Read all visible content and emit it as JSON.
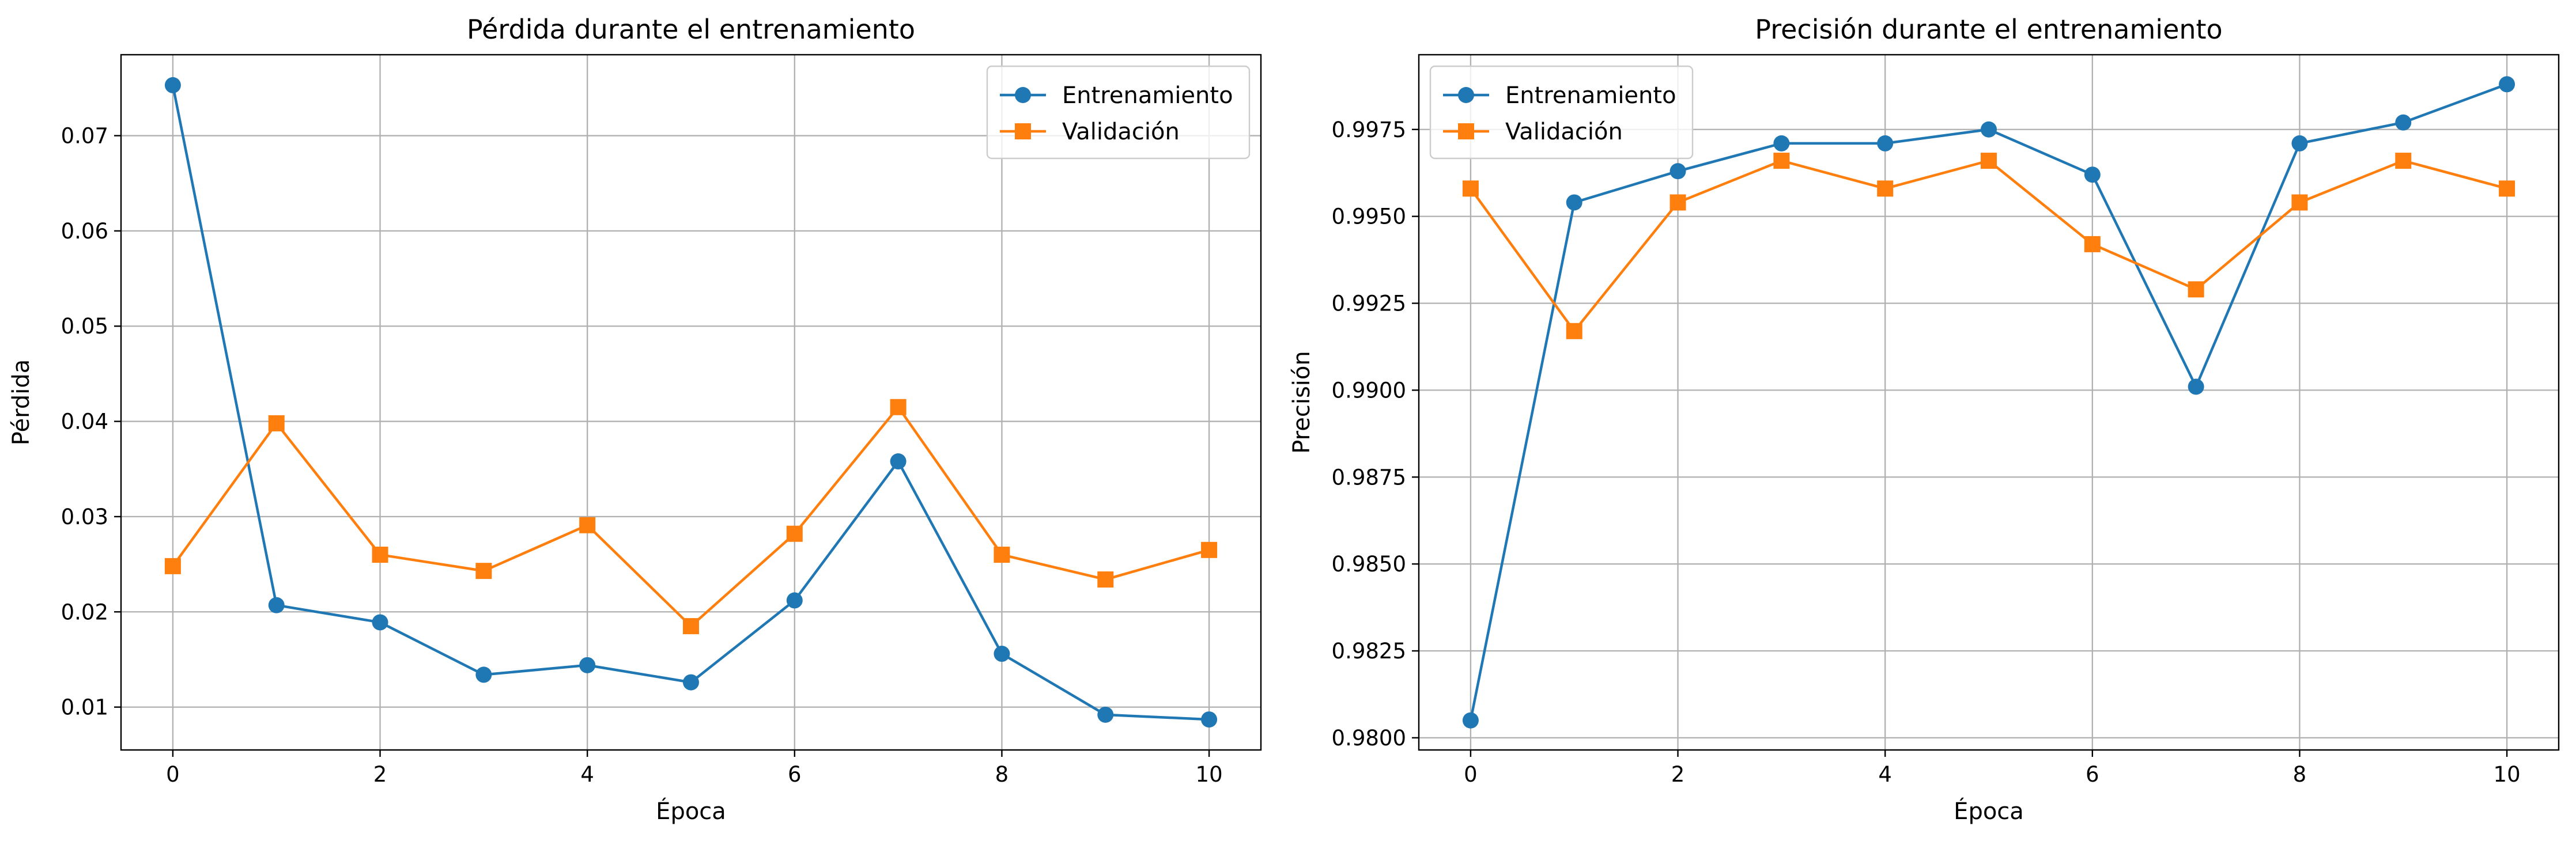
{
  "chart_data": [
    {
      "type": "line",
      "title": "Pérdida durante el entrenamiento",
      "xlabel": "Época",
      "ylabel": "Pérdida",
      "xlim": [
        -0.5,
        10.5
      ],
      "ylim": [
        0.0055,
        0.0785
      ],
      "xticks": [
        0,
        2,
        4,
        6,
        8,
        10
      ],
      "xtick_labels": [
        "0",
        "2",
        "4",
        "6",
        "8",
        "10"
      ],
      "yticks": [
        0.01,
        0.02,
        0.03,
        0.04,
        0.05,
        0.06,
        0.07
      ],
      "ytick_labels": [
        "0.01",
        "0.02",
        "0.03",
        "0.04",
        "0.05",
        "0.06",
        "0.07"
      ],
      "grid": true,
      "legend_position": "upper right",
      "x": [
        0,
        1,
        2,
        3,
        4,
        5,
        6,
        7,
        8,
        9,
        10
      ],
      "series": [
        {
          "name": "Entrenamiento",
          "color": "#1f77b4",
          "marker": "circle",
          "values": [
            0.0753,
            0.0207,
            0.0189,
            0.0134,
            0.0144,
            0.0126,
            0.0212,
            0.0358,
            0.0156,
            0.0092,
            0.0087
          ]
        },
        {
          "name": "Validación",
          "color": "#ff7f0e",
          "marker": "square",
          "values": [
            0.0248,
            0.0398,
            0.026,
            0.0243,
            0.0291,
            0.0185,
            0.0282,
            0.0415,
            0.026,
            0.0234,
            0.0265
          ]
        }
      ]
    },
    {
      "type": "line",
      "title": "Precisión durante el entrenamiento",
      "xlabel": "Época",
      "ylabel": "Precisión",
      "xlim": [
        -0.5,
        10.5
      ],
      "ylim": [
        0.97965,
        0.99965
      ],
      "xticks": [
        0,
        2,
        4,
        6,
        8,
        10
      ],
      "xtick_labels": [
        "0",
        "2",
        "4",
        "6",
        "8",
        "10"
      ],
      "yticks": [
        0.98,
        0.9825,
        0.985,
        0.9875,
        0.99,
        0.9925,
        0.995,
        0.9975
      ],
      "ytick_labels": [
        "0.9800",
        "0.9825",
        "0.9850",
        "0.9875",
        "0.9900",
        "0.9925",
        "0.9950",
        "0.9975"
      ],
      "grid": true,
      "legend_position": "upper left",
      "x": [
        0,
        1,
        2,
        3,
        4,
        5,
        6,
        7,
        8,
        9,
        10
      ],
      "series": [
        {
          "name": "Entrenamiento",
          "color": "#1f77b4",
          "marker": "circle",
          "values": [
            0.9805,
            0.9954,
            0.9963,
            0.9971,
            0.9971,
            0.9975,
            0.9962,
            0.9901,
            0.9971,
            0.9977,
            0.9988
          ]
        },
        {
          "name": "Validación",
          "color": "#ff7f0e",
          "marker": "square",
          "values": [
            0.9958,
            0.9917,
            0.9954,
            0.9966,
            0.9958,
            0.9966,
            0.9942,
            0.9929,
            0.9954,
            0.9966,
            0.9958
          ]
        }
      ]
    }
  ]
}
